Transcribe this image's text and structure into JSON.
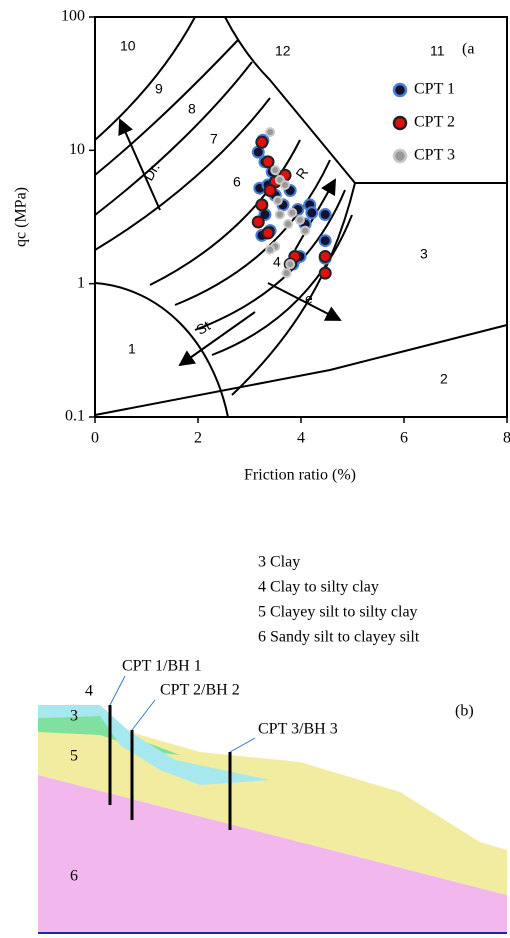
{
  "chart_data": {
    "type": "scatter",
    "panel_label": "(a",
    "xlabel": "Friction ratio (%)",
    "ylabel": "qc (MPa)",
    "xlim": [
      0,
      8
    ],
    "xticks": [
      0,
      2,
      4,
      6,
      8
    ],
    "ylim": [
      0.1,
      100
    ],
    "yticks": [
      0.1,
      1,
      10,
      100
    ],
    "yscale": "log",
    "zone_labels": [
      "10",
      "9",
      "8",
      "7",
      "6",
      "12",
      "11",
      "3",
      "4",
      "2",
      "1"
    ],
    "annotations": [
      "Dr.",
      "R",
      "e",
      "St"
    ],
    "series": [
      {
        "name": "CPT 1",
        "color": "#111133",
        "edgecolor": "#4a7fd4",
        "x": [
          3.26,
          3.17,
          3.3,
          3.44,
          3.2,
          3.36,
          3.5,
          3.79,
          3.65,
          3.94,
          4.17,
          4.21,
          4.47,
          3.3,
          3.4,
          3.24,
          4.08,
          3.98,
          3.84,
          4.47,
          4.47
        ],
        "values": [
          11.9,
          9.7,
          8.2,
          6.9,
          5.2,
          5.5,
          4.6,
          5.0,
          3.9,
          3.6,
          3.9,
          3.4,
          3.3,
          3.3,
          2.5,
          2.3,
          2.8,
          1.6,
          1.4,
          2.1,
          1.55
        ]
      },
      {
        "name": "CPT 2",
        "color": "#e01010",
        "edgecolor": "#222222",
        "x": [
          3.24,
          3.36,
          3.5,
          3.4,
          3.24,
          3.17,
          3.36,
          3.88,
          3.79,
          4.47,
          4.47,
          3.69
        ],
        "values": [
          11.5,
          8.2,
          5.8,
          5.0,
          3.9,
          2.9,
          2.4,
          1.6,
          1.4,
          1.6,
          1.2,
          6.5
        ]
      },
      {
        "name": "CPT 3",
        "color": "#999999",
        "edgecolor": "#c8c8c8",
        "x": [
          3.4,
          3.5,
          3.59,
          3.69,
          3.55,
          3.83,
          3.59,
          3.75,
          3.98,
          4.08,
          3.5,
          3.4,
          3.79,
          3.72
        ],
        "values": [
          13.7,
          7.1,
          6.0,
          5.5,
          4.2,
          3.4,
          3.3,
          2.8,
          3.0,
          2.5,
          1.9,
          1.8,
          1.4,
          1.2
        ]
      }
    ]
  },
  "soil_legend": [
    "3 Clay",
    "4 Clay to silty clay",
    "5 Clayey silt to silty clay",
    "6 Sandy silt to clayey silt"
  ],
  "profile": {
    "panel_label": "(b)",
    "boreholes": [
      "CPT 1/BH 1",
      "CPT 2/BH 2",
      "CPT 3/BH 3"
    ],
    "layers": [
      "4",
      "3",
      "5",
      "6"
    ]
  }
}
